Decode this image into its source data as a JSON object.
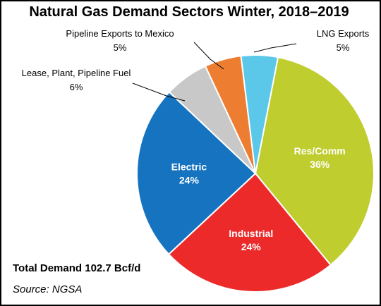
{
  "chart_data": {
    "type": "pie",
    "title": "Natural Gas Demand Sectors Winter, 2018–2019",
    "slices": [
      {
        "name": "Res/Comm",
        "value": 36,
        "label": "36%",
        "color": "#bfcd2e",
        "placement": "inside"
      },
      {
        "name": "Industrial",
        "value": 24,
        "label": "24%",
        "color": "#ec2a2a",
        "placement": "inside"
      },
      {
        "name": "Electric",
        "value": 24,
        "label": "24%",
        "color": "#1573c0",
        "placement": "inside"
      },
      {
        "name": "Lease, Plant, Pipeline Fuel",
        "value": 6,
        "label": "6%",
        "color": "#c8c8c8",
        "placement": "outside"
      },
      {
        "name": "Pipeline Exports to Mexico",
        "value": 5,
        "label": "5%",
        "color": "#ed7d31",
        "placement": "outside"
      },
      {
        "name": "LNG Exports",
        "value": 5,
        "label": "5%",
        "color": "#5bc8ea",
        "placement": "outside"
      }
    ],
    "annotations": {
      "total": "Total Demand 102.7 Bcf/d",
      "source": "Source: NGSA"
    }
  }
}
